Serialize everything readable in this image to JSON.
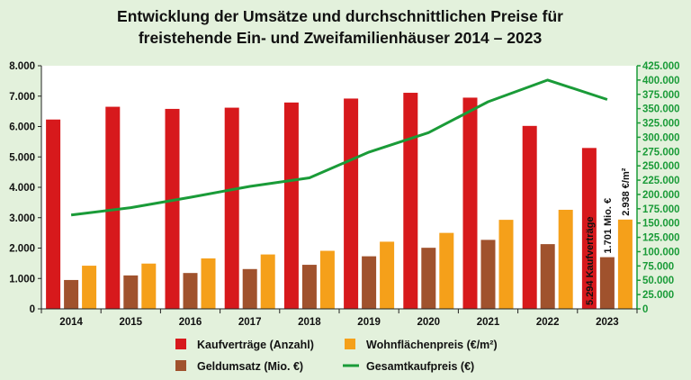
{
  "chart_data": {
    "type": "bar",
    "title": "Entwicklung der Umsätze und durchschnittlichen Preise für freistehende Ein- und Zweifamilienhäuser 2014 – 2023",
    "title_lines": [
      "Entwicklung der Umsätze und durchschnittlichen Preise für",
      "freistehende Ein- und Zweifamilienhäuser 2014 – 2023"
    ],
    "categories": [
      "2014",
      "2015",
      "2016",
      "2017",
      "2018",
      "2019",
      "2020",
      "2021",
      "2022",
      "2023"
    ],
    "y_left": {
      "ylim": [
        0,
        8000
      ],
      "ticks": [
        "0",
        "1.000",
        "2.000",
        "3.000",
        "4.000",
        "5.000",
        "6.000",
        "7.000",
        "8.000"
      ]
    },
    "y_right": {
      "ylim": [
        0,
        425000
      ],
      "ticks": [
        "0",
        "25.000",
        "50.000",
        "75.000",
        "100.000",
        "125.000",
        "150.000",
        "175.000",
        "200.000",
        "225.000",
        "250.000",
        "275.000",
        "300.000",
        "325.000",
        "350.000",
        "375.000",
        "400.000",
        "425.000"
      ],
      "color": "#1a9b38"
    },
    "series": [
      {
        "name": "Kaufverträge (Anzahl)",
        "type": "bar",
        "axis": "left",
        "color": "#d7191c",
        "values": [
          6230,
          6650,
          6580,
          6620,
          6790,
          6920,
          7110,
          6950,
          6020,
          5294
        ]
      },
      {
        "name": "Geldumsatz (Mio. €)",
        "type": "bar",
        "axis": "left",
        "color": "#a0522d",
        "values": [
          950,
          1100,
          1180,
          1310,
          1450,
          1730,
          2010,
          2270,
          2130,
          1701
        ]
      },
      {
        "name": "Wohnflächenpreis (€/m²)",
        "type": "bar",
        "axis": "left",
        "color": "#f5a01a",
        "values": [
          1420,
          1490,
          1660,
          1790,
          1910,
          2210,
          2500,
          2930,
          3260,
          2938
        ]
      },
      {
        "name": "Gesamtkaufpreis (€)",
        "type": "line",
        "axis": "right",
        "color": "#1a9b38",
        "values": [
          164000,
          177000,
          195000,
          214000,
          229000,
          274000,
          308000,
          362000,
          400000,
          366000
        ]
      }
    ],
    "annotations": [
      "5.294 Kaufverträge",
      "1.701 Mio. €",
      "2.938 €/m²"
    ],
    "legend_position": "bottom",
    "grid": false
  }
}
